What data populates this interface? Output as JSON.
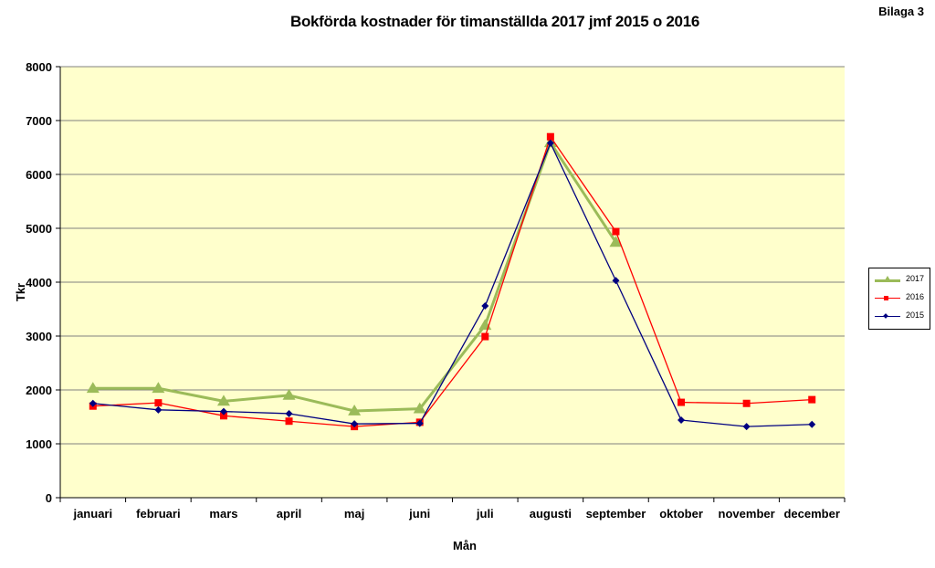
{
  "corner_label": "Bilaga 3",
  "chart_data": {
    "type": "line",
    "title": "Bokförda kostnader för timanställda 2017 jmf 2015 o 2016",
    "xlabel": "Mån",
    "ylabel": "Tkr",
    "ylim": [
      0,
      8000
    ],
    "yticks": [
      0,
      1000,
      2000,
      3000,
      4000,
      5000,
      6000,
      7000,
      8000
    ],
    "grid": true,
    "legend_position": "right",
    "plot_background": "#ffffcc",
    "categories": [
      "januari",
      "februari",
      "mars",
      "april",
      "maj",
      "juni",
      "juli",
      "augusti",
      "september",
      "oktober",
      "november",
      "december"
    ],
    "series": [
      {
        "name": "2017",
        "color": "#9bbb59",
        "marker": "triangle",
        "values": [
          2030,
          2030,
          1790,
          1900,
          1610,
          1650,
          3200,
          6590,
          4740,
          null,
          null,
          null
        ]
      },
      {
        "name": "2016",
        "color": "#ff0000",
        "marker": "square",
        "values": [
          1700,
          1760,
          1520,
          1420,
          1320,
          1400,
          2990,
          6700,
          4940,
          1770,
          1750,
          1820
        ]
      },
      {
        "name": "2015",
        "color": "#000080",
        "marker": "diamond",
        "values": [
          1750,
          1630,
          1600,
          1560,
          1370,
          1380,
          3560,
          6580,
          4030,
          1440,
          1320,
          1360
        ]
      }
    ]
  }
}
